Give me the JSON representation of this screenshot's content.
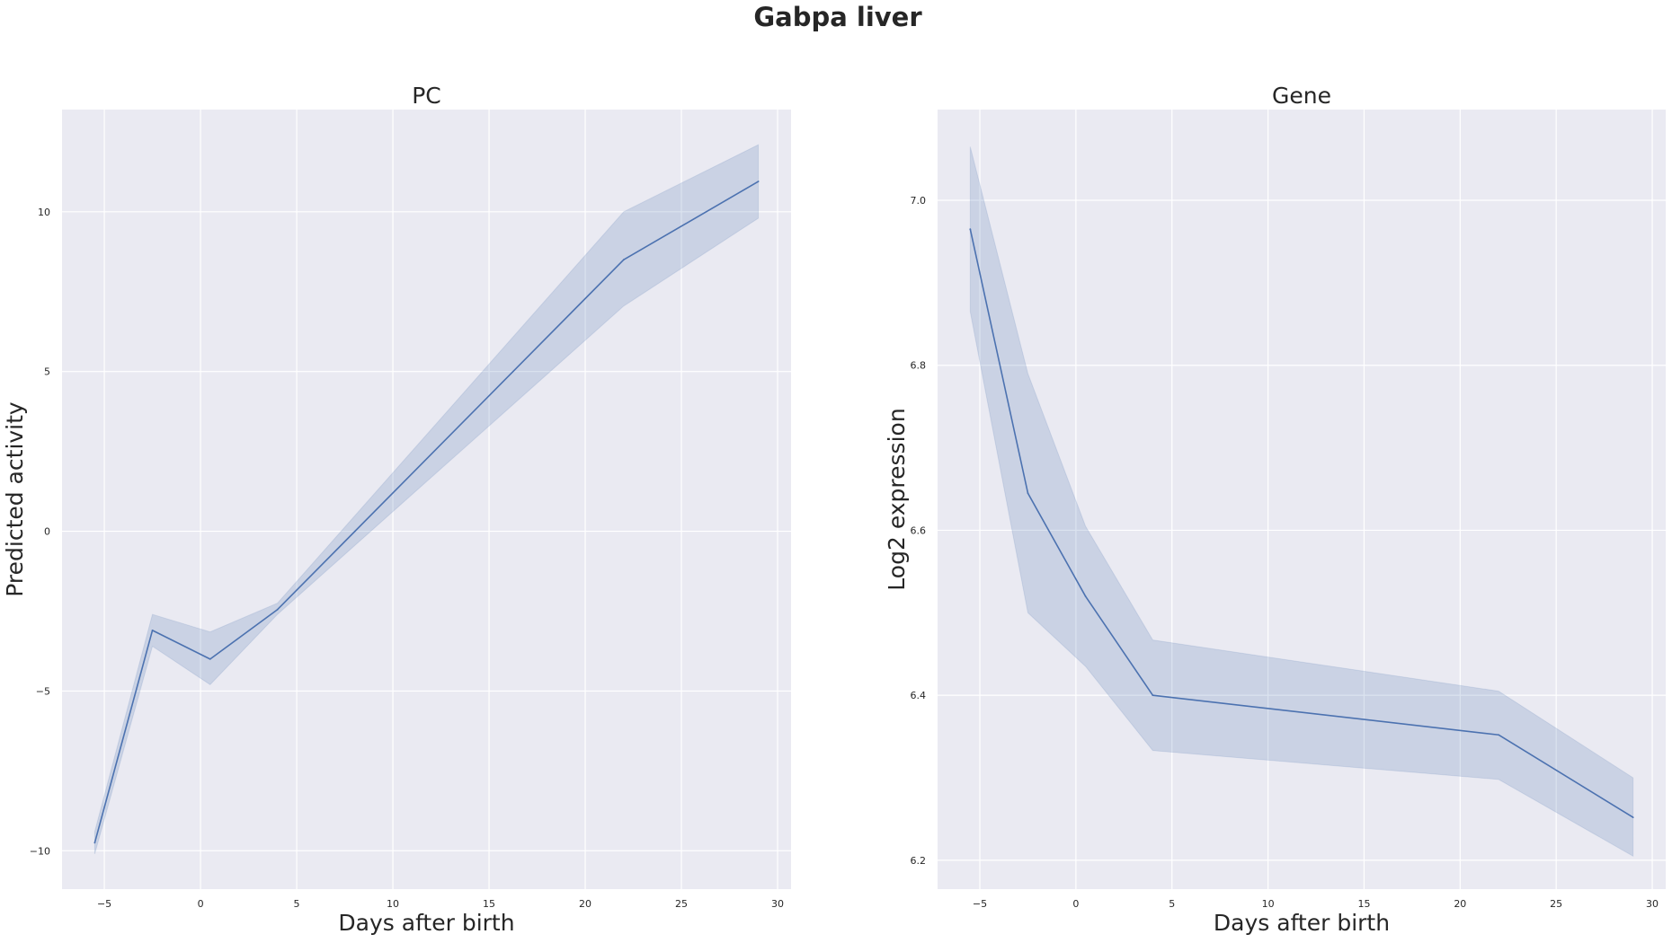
{
  "title": "Gabpa liver",
  "colors": {
    "line": "#4c72b0",
    "band": "#4c72b0",
    "panel_bg": "#eaeaf2",
    "grid": "#ffffff",
    "text": "#262626"
  },
  "chart_data": [
    {
      "type": "line",
      "title": "PC",
      "xlabel": "Days after birth",
      "ylabel": "Predicted activity",
      "xlim": [
        -7.2,
        30.7
      ],
      "ylim": [
        -11.2,
        13.2
      ],
      "xticks": [
        -5,
        0,
        5,
        10,
        15,
        20,
        25,
        30
      ],
      "yticks": [
        -10,
        -5,
        0,
        5,
        10
      ],
      "x_tick_labels": [
        "−5",
        "0",
        "5",
        "10",
        "15",
        "20",
        "25",
        "30"
      ],
      "y_tick_labels": [
        "−10",
        "−5",
        "0",
        "5",
        "10"
      ],
      "grid": true,
      "series": [
        {
          "x": [
            -5.5,
            -2.5,
            0.5,
            4,
            22,
            29
          ],
          "y": [
            -9.75,
            -3.1,
            -4.0,
            -2.45,
            8.5,
            10.95
          ],
          "ci_low": [
            -10.1,
            -3.6,
            -4.8,
            -2.6,
            7.05,
            9.8
          ],
          "ci_high": [
            -9.4,
            -2.6,
            -3.15,
            -2.25,
            10.0,
            12.1
          ]
        }
      ]
    },
    {
      "type": "line",
      "title": "Gene",
      "xlabel": "Days after birth",
      "ylabel": "Log2 expression",
      "xlim": [
        -7.2,
        30.7
      ],
      "ylim": [
        6.165,
        7.11
      ],
      "xticks": [
        -5,
        0,
        5,
        10,
        15,
        20,
        25,
        30
      ],
      "yticks": [
        6.2,
        6.4,
        6.6,
        6.8,
        7.0
      ],
      "x_tick_labels": [
        "−5",
        "0",
        "5",
        "10",
        "15",
        "20",
        "25",
        "30"
      ],
      "y_tick_labels": [
        "6.2",
        "6.4",
        "6.6",
        "6.8",
        "7.0"
      ],
      "grid": true,
      "series": [
        {
          "x": [
            -5.5,
            -2.5,
            0.5,
            4,
            22,
            29
          ],
          "y": [
            6.965,
            6.645,
            6.52,
            6.4,
            6.352,
            6.252
          ],
          "ci_low": [
            6.865,
            6.5,
            6.435,
            6.333,
            6.298,
            6.205
          ],
          "ci_high": [
            7.065,
            6.79,
            6.605,
            6.467,
            6.405,
            6.3
          ]
        }
      ]
    }
  ]
}
